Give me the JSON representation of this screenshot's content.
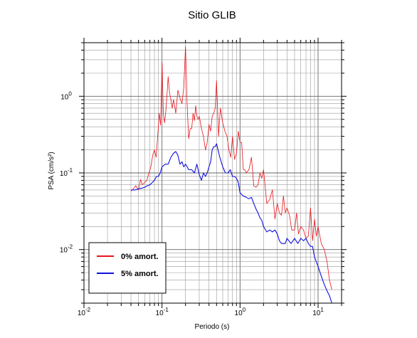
{
  "chart_data": {
    "type": "line",
    "title": "Sitio GLIB",
    "xlabel": "Periodo (s)",
    "ylabel": "PSA (cm/s²)",
    "xscale": "log",
    "yscale": "log",
    "xlim": [
      0.01,
      20
    ],
    "ylim": [
      0.002,
      5
    ],
    "grid": true,
    "legend_position": "bottom-left",
    "x_ticks": [
      {
        "base": "10",
        "exp": "-2",
        "value": 0.01
      },
      {
        "base": "10",
        "exp": "-1",
        "value": 0.1
      },
      {
        "base": "10",
        "exp": "0",
        "value": 1
      },
      {
        "base": "10",
        "exp": "1",
        "value": 10
      }
    ],
    "y_ticks": [
      {
        "base": "10",
        "exp": "-2",
        "value": 0.01
      },
      {
        "base": "10",
        "exp": "-1",
        "value": 0.1
      },
      {
        "base": "10",
        "exp": "0",
        "value": 1
      }
    ],
    "series": [
      {
        "name": "0% amort.",
        "color": "#e8141c",
        "x": [
          0.04,
          0.043,
          0.046,
          0.05,
          0.053,
          0.056,
          0.06,
          0.064,
          0.068,
          0.072,
          0.076,
          0.08,
          0.084,
          0.088,
          0.092,
          0.096,
          0.1,
          0.104,
          0.108,
          0.112,
          0.116,
          0.12,
          0.125,
          0.13,
          0.135,
          0.14,
          0.145,
          0.15,
          0.16,
          0.17,
          0.18,
          0.19,
          0.2,
          0.21,
          0.22,
          0.23,
          0.24,
          0.25,
          0.26,
          0.27,
          0.28,
          0.29,
          0.3,
          0.32,
          0.34,
          0.36,
          0.38,
          0.4,
          0.42,
          0.44,
          0.46,
          0.48,
          0.5,
          0.53,
          0.56,
          0.6,
          0.64,
          0.68,
          0.72,
          0.76,
          0.8,
          0.85,
          0.9,
          0.95,
          1.0,
          1.05,
          1.1,
          1.15,
          1.2,
          1.3,
          1.4,
          1.5,
          1.6,
          1.7,
          1.8,
          1.9,
          2.0,
          2.2,
          2.4,
          2.6,
          2.8,
          3.0,
          3.2,
          3.4,
          3.6,
          3.8,
          4.0,
          4.3,
          4.6,
          5.0,
          5.3,
          5.6,
          6.0,
          6.5,
          7.0,
          7.5,
          8.0,
          8.5,
          9.0,
          9.5,
          10.0,
          11.0,
          12.0,
          13.0,
          14.0,
          15.0
        ],
        "values": [
          0.058,
          0.062,
          0.068,
          0.06,
          0.082,
          0.07,
          0.075,
          0.08,
          0.1,
          0.12,
          0.17,
          0.2,
          0.16,
          0.3,
          0.6,
          0.42,
          2.8,
          0.6,
          0.45,
          0.65,
          1.05,
          1.8,
          1.1,
          0.9,
          0.7,
          0.9,
          0.75,
          0.6,
          1.2,
          0.95,
          0.8,
          1.3,
          4.5,
          0.75,
          0.28,
          0.38,
          0.38,
          0.6,
          0.48,
          0.75,
          0.55,
          0.5,
          0.55,
          0.38,
          0.3,
          0.2,
          0.25,
          0.43,
          0.35,
          0.55,
          0.6,
          0.7,
          1.6,
          0.3,
          0.7,
          0.45,
          0.35,
          0.3,
          0.2,
          0.16,
          0.3,
          0.15,
          0.18,
          0.35,
          0.25,
          0.25,
          0.11,
          0.11,
          0.1,
          0.11,
          0.16,
          0.068,
          0.065,
          0.07,
          0.1,
          0.085,
          0.11,
          0.04,
          0.045,
          0.06,
          0.025,
          0.04,
          0.03,
          0.028,
          0.05,
          0.03,
          0.035,
          0.028,
          0.018,
          0.018,
          0.03,
          0.016,
          0.02,
          0.018,
          0.014,
          0.015,
          0.035,
          0.013,
          0.025,
          0.015,
          0.02,
          0.012,
          0.01,
          0.007,
          0.004,
          0.003
        ]
      },
      {
        "name": "5% amort.",
        "color": "#1010e0",
        "x": [
          0.04,
          0.045,
          0.05,
          0.055,
          0.06,
          0.065,
          0.07,
          0.075,
          0.08,
          0.085,
          0.09,
          0.095,
          0.1,
          0.11,
          0.12,
          0.13,
          0.14,
          0.15,
          0.16,
          0.17,
          0.18,
          0.19,
          0.2,
          0.21,
          0.22,
          0.24,
          0.26,
          0.28,
          0.3,
          0.32,
          0.34,
          0.36,
          0.38,
          0.4,
          0.42,
          0.44,
          0.46,
          0.48,
          0.5,
          0.55,
          0.6,
          0.65,
          0.7,
          0.75,
          0.8,
          0.85,
          0.9,
          0.95,
          1.0,
          1.1,
          1.2,
          1.3,
          1.4,
          1.5,
          1.6,
          1.7,
          1.8,
          1.9,
          2.0,
          2.2,
          2.4,
          2.6,
          2.8,
          3.0,
          3.2,
          3.4,
          3.6,
          3.8,
          4.0,
          4.5,
          5.0,
          5.5,
          6.0,
          6.5,
          7.0,
          7.5,
          8.0,
          8.5,
          9.0,
          10.0,
          11.0,
          12.0,
          13.0,
          14.0,
          15.0
        ],
        "values": [
          0.06,
          0.06,
          0.062,
          0.063,
          0.065,
          0.068,
          0.07,
          0.075,
          0.08,
          0.09,
          0.09,
          0.1,
          0.12,
          0.13,
          0.13,
          0.16,
          0.18,
          0.19,
          0.17,
          0.13,
          0.14,
          0.12,
          0.13,
          0.12,
          0.11,
          0.11,
          0.1,
          0.13,
          0.095,
          0.08,
          0.1,
          0.09,
          0.1,
          0.12,
          0.14,
          0.2,
          0.22,
          0.22,
          0.24,
          0.16,
          0.12,
          0.1,
          0.1,
          0.11,
          0.09,
          0.09,
          0.085,
          0.075,
          0.055,
          0.05,
          0.048,
          0.046,
          0.048,
          0.04,
          0.034,
          0.03,
          0.026,
          0.024,
          0.02,
          0.017,
          0.018,
          0.017,
          0.018,
          0.016,
          0.013,
          0.012,
          0.012,
          0.012,
          0.014,
          0.012,
          0.014,
          0.012,
          0.014,
          0.013,
          0.014,
          0.012,
          0.011,
          0.011,
          0.008,
          0.006,
          0.0045,
          0.0035,
          0.0029,
          0.0025,
          0.002
        ]
      }
    ]
  }
}
